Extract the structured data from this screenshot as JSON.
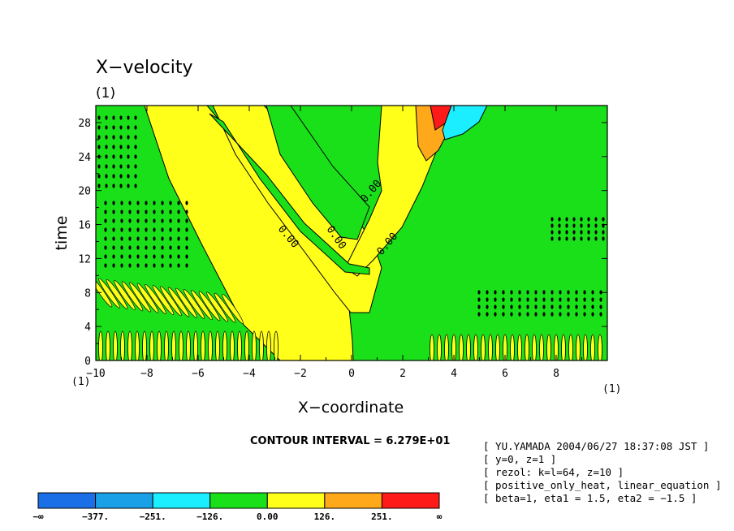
{
  "chart_data": {
    "type": "contour",
    "title": "X−velocity",
    "title_unit": "(1)",
    "xlabel": "X−coordinate",
    "ylabel": "time",
    "x_axis_unit_left": "(1)",
    "x_axis_unit_right": "(1)",
    "xlim": [
      -10,
      10
    ],
    "ylim": [
      0,
      30
    ],
    "x_ticks": [
      -10,
      -8,
      -6,
      -4,
      -2,
      0,
      2,
      4,
      6,
      8
    ],
    "x_tick_labels": [
      "−10",
      "−8",
      "−6",
      "−4",
      "−2",
      "0",
      "2",
      "4",
      "6",
      "8"
    ],
    "y_ticks": [
      0,
      4,
      8,
      12,
      16,
      20,
      24,
      28
    ],
    "y_tick_labels": [
      "0",
      "4",
      "8",
      "12",
      "16",
      "20",
      "24",
      "28"
    ],
    "contour_interval_text": "CONTOUR INTERVAL = 6.279E+01",
    "contour_line_labels": [
      "0.00",
      "0.00",
      "0.00",
      "0.00"
    ],
    "colorbar": {
      "labels": [
        "−∞",
        "−377.",
        "−251.",
        "−126.",
        "0.00",
        "126.",
        "251.",
        "∞"
      ],
      "colors": [
        "#1a6fe6",
        "#1aa0e6",
        "#1aeeff",
        "#1ae01a",
        "#ffff1a",
        "#ffa81a",
        "#ff1a1a"
      ]
    },
    "palette": {
      "zero_to_pos": "#ffff1a",
      "neg_to_zero": "#1ae01a",
      "high_pos": "#ffa81a",
      "max_pos": "#ff1a1a",
      "low_neg": "#1aeeff"
    }
  },
  "metadata_lines": [
    "[ YU.YAMADA 2004/06/27 18:37:08 JST ]",
    "[ y=0, z=1 ]",
    "[ rezol: k=l=64, z=10 ]",
    "[ positive_only_heat, linear_equation ]",
    "[ beta=1, eta1 = 1.5, eta2 = −1.5 ]"
  ]
}
